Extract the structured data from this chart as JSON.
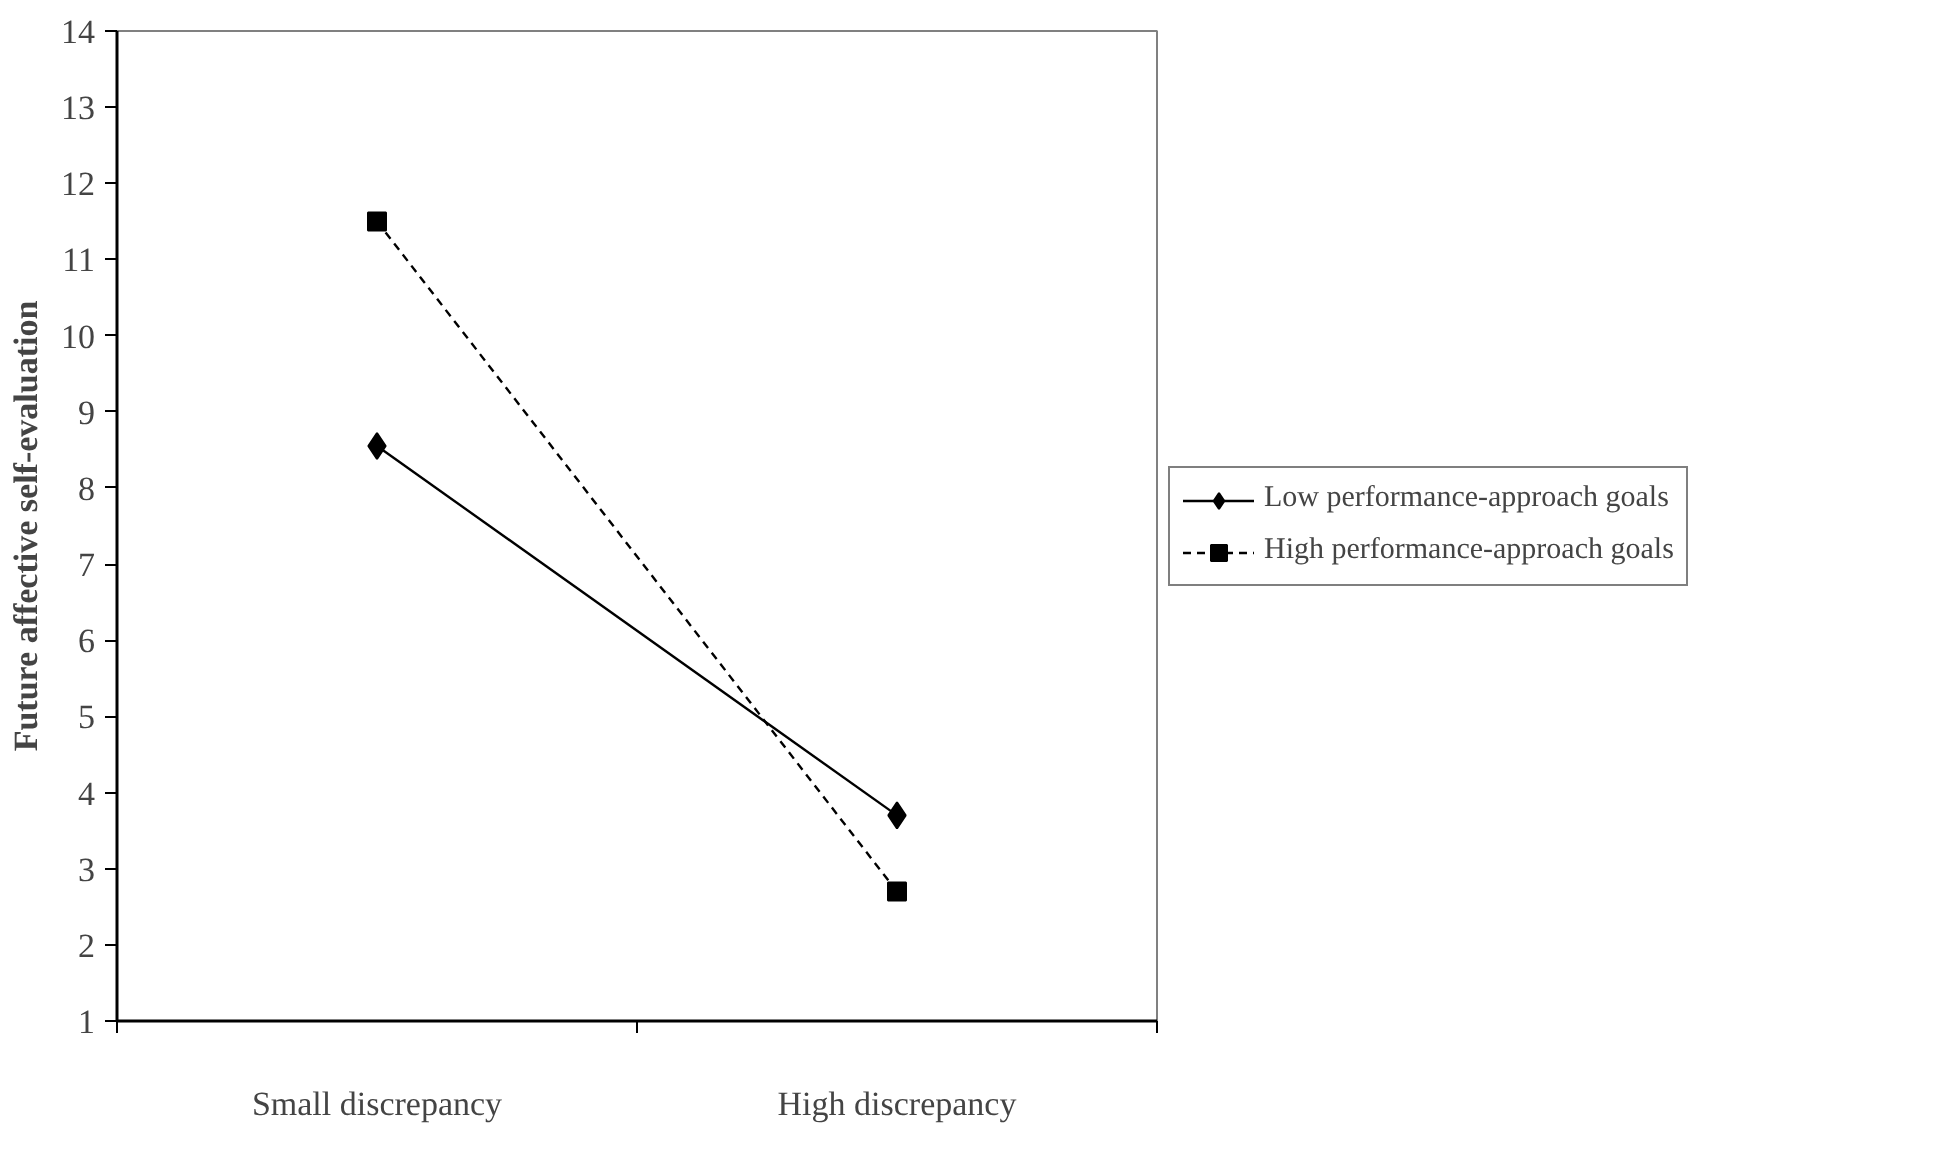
{
  "chart_data": {
    "type": "line",
    "ylabel": "Future affective self-evaluation",
    "categories": [
      "Small discrepancy",
      "High discrepancy"
    ],
    "series": [
      {
        "name": "Low performance-approach goals",
        "color": "#000000",
        "values": [
          8.55,
          3.7
        ],
        "marker": "diamond",
        "line_style": "solid"
      },
      {
        "name": "High performance-approach goals",
        "color": "#000000",
        "values": [
          11.5,
          2.7
        ],
        "marker": "square",
        "line_style": "dashed"
      }
    ],
    "ylim": [
      1,
      14
    ],
    "yticks": [
      1,
      2,
      3,
      4,
      5,
      6,
      7,
      8,
      9,
      10,
      11,
      12,
      13,
      14
    ],
    "grid": false,
    "legend": "right"
  }
}
